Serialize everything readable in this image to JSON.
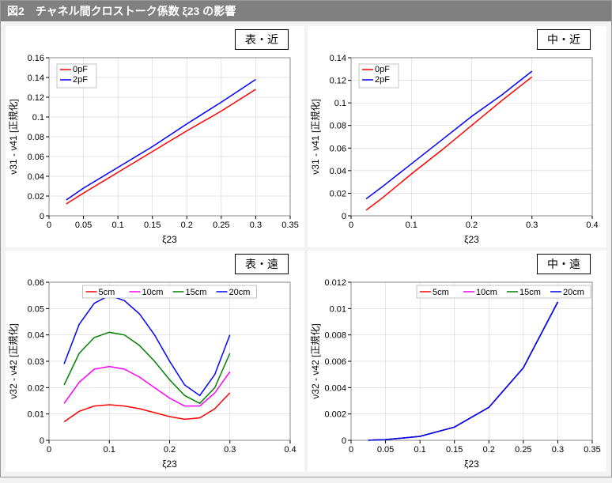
{
  "title": "図2　チャネル間クロストーク係数 ξ23 の影響",
  "panels": [
    {
      "subtitle": "表・近",
      "xlabel": "ξ23",
      "ylabel": "ν31 - ν41 [正規化]",
      "xlim": [
        0,
        0.35
      ],
      "xticks": [
        0,
        0.05,
        0.1,
        0.15,
        0.2,
        0.25,
        0.3,
        0.35
      ],
      "ylim": [
        0,
        0.16
      ],
      "yticks": [
        0,
        0.02,
        0.04,
        0.06,
        0.08,
        0.1,
        0.12,
        0.14,
        0.16
      ],
      "legend_pos": "ul",
      "series": [
        {
          "name": "0pF",
          "color": "#ff0000",
          "x": [
            0.025,
            0.05,
            0.1,
            0.15,
            0.2,
            0.25,
            0.3
          ],
          "y": [
            0.012,
            0.023,
            0.044,
            0.065,
            0.086,
            0.106,
            0.128
          ]
        },
        {
          "name": "2pF",
          "color": "#0000ff",
          "x": [
            0.025,
            0.05,
            0.1,
            0.15,
            0.2,
            0.25,
            0.3
          ],
          "y": [
            0.016,
            0.028,
            0.049,
            0.07,
            0.093,
            0.115,
            0.138
          ]
        }
      ]
    },
    {
      "subtitle": "中・近",
      "xlabel": "ξ23",
      "ylabel": "ν31 - ν41 [正規化]",
      "xlim": [
        0,
        0.4
      ],
      "xticks": [
        0,
        0.1,
        0.2,
        0.3,
        0.4
      ],
      "ylim": [
        0,
        0.14
      ],
      "yticks": [
        0,
        0.02,
        0.04,
        0.06,
        0.08,
        0.1,
        0.12,
        0.14
      ],
      "legend_pos": "ul",
      "series": [
        {
          "name": "0pF",
          "color": "#ff0000",
          "x": [
            0.025,
            0.05,
            0.1,
            0.15,
            0.2,
            0.25,
            0.3
          ],
          "y": [
            0.005,
            0.015,
            0.037,
            0.058,
            0.08,
            0.102,
            0.123
          ]
        },
        {
          "name": "2pF",
          "color": "#0000ff",
          "x": [
            0.025,
            0.05,
            0.1,
            0.15,
            0.2,
            0.25,
            0.3
          ],
          "y": [
            0.015,
            0.025,
            0.046,
            0.067,
            0.088,
            0.107,
            0.128
          ]
        }
      ]
    },
    {
      "subtitle": "表・遠",
      "xlabel": "ξ23",
      "ylabel": "ν32 - ν42 [正規化]",
      "xlim": [
        0,
        0.4
      ],
      "xticks": [
        0,
        0.1,
        0.2,
        0.3,
        0.4
      ],
      "ylim": [
        0,
        0.06
      ],
      "yticks": [
        0,
        0.01,
        0.02,
        0.03,
        0.04,
        0.05,
        0.06
      ],
      "legend_pos": "top",
      "series": [
        {
          "name": "5cm",
          "color": "#ff0000",
          "x": [
            0.025,
            0.05,
            0.075,
            0.1,
            0.125,
            0.15,
            0.175,
            0.2,
            0.225,
            0.25,
            0.275,
            0.3
          ],
          "y": [
            0.007,
            0.011,
            0.013,
            0.0135,
            0.013,
            0.012,
            0.0105,
            0.009,
            0.008,
            0.0085,
            0.012,
            0.018
          ]
        },
        {
          "name": "10cm",
          "color": "#ff00ff",
          "x": [
            0.025,
            0.05,
            0.075,
            0.1,
            0.125,
            0.15,
            0.175,
            0.2,
            0.225,
            0.25,
            0.275,
            0.3
          ],
          "y": [
            0.014,
            0.022,
            0.027,
            0.028,
            0.027,
            0.024,
            0.02,
            0.016,
            0.013,
            0.013,
            0.018,
            0.026
          ]
        },
        {
          "name": "15cm",
          "color": "#008000",
          "x": [
            0.025,
            0.05,
            0.075,
            0.1,
            0.125,
            0.15,
            0.175,
            0.2,
            0.225,
            0.25,
            0.275,
            0.3
          ],
          "y": [
            0.021,
            0.033,
            0.039,
            0.041,
            0.04,
            0.036,
            0.03,
            0.023,
            0.017,
            0.014,
            0.02,
            0.033
          ]
        },
        {
          "name": "20cm",
          "color": "#0000ff",
          "x": [
            0.025,
            0.05,
            0.075,
            0.1,
            0.125,
            0.15,
            0.175,
            0.2,
            0.225,
            0.25,
            0.275,
            0.3
          ],
          "y": [
            0.029,
            0.044,
            0.052,
            0.055,
            0.053,
            0.048,
            0.04,
            0.03,
            0.021,
            0.017,
            0.025,
            0.04
          ]
        }
      ]
    },
    {
      "subtitle": "中・遠",
      "xlabel": "ξ23",
      "ylabel": "ν32 - ν42 [正規化]",
      "xlim": [
        0,
        0.35
      ],
      "xticks": [
        0,
        0.05,
        0.1,
        0.15,
        0.2,
        0.25,
        0.3,
        0.35
      ],
      "ylim": [
        0,
        0.012
      ],
      "yticks": [
        0,
        0.002,
        0.004,
        0.006,
        0.008,
        0.01,
        0.012
      ],
      "legend_pos": "top-right",
      "series": [
        {
          "name": "5cm",
          "color": "#ff0000",
          "x": [
            0.025,
            0.05,
            0.1,
            0.15,
            0.2,
            0.25,
            0.3
          ],
          "y": [
            1e-05,
            5e-05,
            0.0003,
            0.001,
            0.0025,
            0.0055,
            0.0105
          ]
        },
        {
          "name": "10cm",
          "color": "#ff00ff",
          "x": [
            0.025,
            0.05,
            0.1,
            0.15,
            0.2,
            0.25,
            0.3
          ],
          "y": [
            1e-05,
            5e-05,
            0.0003,
            0.001,
            0.0025,
            0.0055,
            0.0105
          ]
        },
        {
          "name": "15cm",
          "color": "#008000",
          "x": [
            0.025,
            0.05,
            0.1,
            0.15,
            0.2,
            0.25,
            0.3
          ],
          "y": [
            1e-05,
            5e-05,
            0.0003,
            0.001,
            0.0025,
            0.0055,
            0.0105
          ]
        },
        {
          "name": "20cm",
          "color": "#0000ff",
          "x": [
            0.025,
            0.05,
            0.1,
            0.15,
            0.2,
            0.25,
            0.3
          ],
          "y": [
            1e-05,
            5e-05,
            0.0003,
            0.001,
            0.0025,
            0.0055,
            0.0105
          ]
        }
      ]
    }
  ]
}
